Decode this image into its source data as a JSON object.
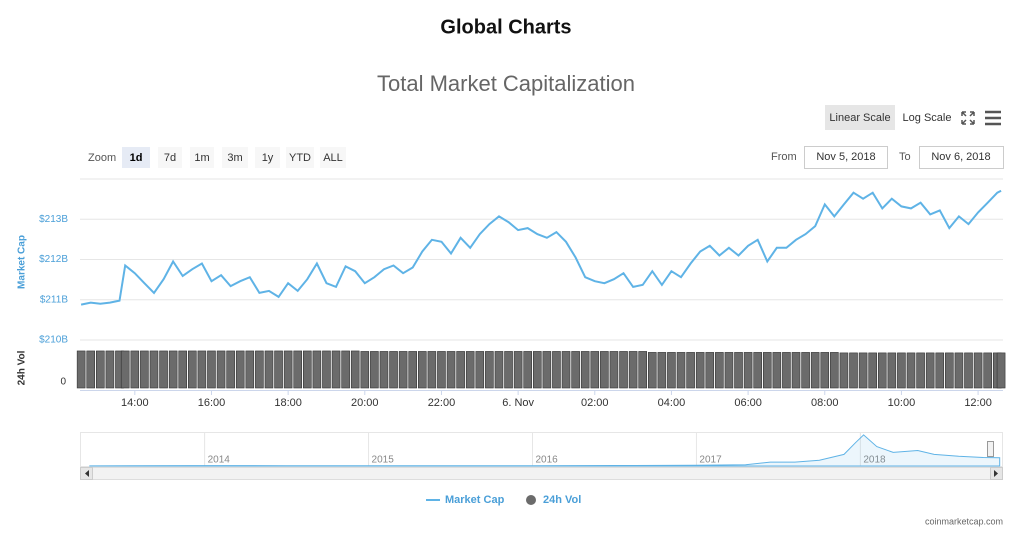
{
  "header": {
    "title": "Global Charts"
  },
  "controls": {
    "linear": "Linear Scale",
    "log": "Log Scale",
    "zoom_label": "Zoom",
    "zoom": [
      "1d",
      "7d",
      "1m",
      "3m",
      "1y",
      "YTD",
      "ALL"
    ],
    "from_label": "From",
    "from": "Nov 5, 2018",
    "to_label": "To",
    "to": "Nov 6, 2018"
  },
  "credit": "coinmarketcap.com",
  "chart_data": {
    "type": "line",
    "title": "Total Market Capitalization",
    "ylabel": "Market Cap",
    "y2label": "24h Vol",
    "x": [
      12.6,
      12.85,
      13.1,
      13.35,
      13.6,
      13.75,
      14,
      14.25,
      14.5,
      14.75,
      15,
      15.25,
      15.5,
      15.75,
      16,
      16.25,
      16.5,
      16.75,
      17,
      17.25,
      17.5,
      17.75,
      18,
      18.25,
      18.5,
      18.75,
      19,
      19.25,
      19.5,
      19.75,
      20,
      20.25,
      20.5,
      20.75,
      21,
      21.25,
      21.5,
      21.75,
      22,
      22.25,
      22.5,
      22.75,
      23,
      23.25,
      23.5,
      23.75,
      24,
      24.25,
      24.5,
      24.75,
      25,
      25.25,
      25.5,
      25.75,
      26,
      26.25,
      26.5,
      26.75,
      27,
      27.25,
      27.5,
      27.75,
      28,
      28.25,
      28.5,
      28.75,
      29,
      29.25,
      29.5,
      29.75,
      30,
      30.25,
      30.5,
      30.75,
      31,
      31.25,
      31.5,
      31.75,
      32,
      32.25,
      32.5,
      32.75,
      33,
      33.25,
      33.5,
      33.75,
      34,
      34.25,
      34.5,
      34.75,
      35,
      35.25,
      35.5,
      35.75,
      36,
      36.25,
      36.5,
      36.6
    ],
    "series": [
      {
        "name": "Market Cap",
        "color": "#5fb3e6",
        "values": [
          210.88,
          210.93,
          210.9,
          210.93,
          210.98,
          211.85,
          211.66,
          211.41,
          211.17,
          211.51,
          211.95,
          211.59,
          211.76,
          211.9,
          211.46,
          211.61,
          211.34,
          211.46,
          211.56,
          211.17,
          211.22,
          211.07,
          211.41,
          211.22,
          211.51,
          211.9,
          211.41,
          211.32,
          211.83,
          211.71,
          211.41,
          211.56,
          211.76,
          211.85,
          211.66,
          211.8,
          212.2,
          212.49,
          212.44,
          212.15,
          212.54,
          212.29,
          212.63,
          212.88,
          213.07,
          212.93,
          212.73,
          212.78,
          212.63,
          212.54,
          212.68,
          212.44,
          212.05,
          211.56,
          211.46,
          211.41,
          211.51,
          211.66,
          211.32,
          211.37,
          211.71,
          211.37,
          211.71,
          211.56,
          211.9,
          212.2,
          212.34,
          212.1,
          212.29,
          212.1,
          212.34,
          212.49,
          211.95,
          212.29,
          212.29,
          212.49,
          212.63,
          212.83,
          213.37,
          213.07,
          213.37,
          213.66,
          213.51,
          213.66,
          213.27,
          213.51,
          213.32,
          213.27,
          213.41,
          213.12,
          213.22,
          212.78,
          213.07,
          212.88,
          213.17,
          213.41,
          213.66,
          213.71
        ]
      },
      {
        "name": "24h Vol",
        "color": "#6b6b6b",
        "axis": "y2",
        "values": [
          15.2,
          15.2,
          15.2,
          15.2,
          15.2,
          15.2,
          15.2,
          15.2,
          15.2,
          15.2,
          15.2,
          15.2,
          15.2,
          15.2,
          15.2,
          15.2,
          15.2,
          15.2,
          15.2,
          15.2,
          15.2,
          15.2,
          15.2,
          15.2,
          15.2,
          15.2,
          15.2,
          15.2,
          15.2,
          15.2,
          15.0,
          15.0,
          15.0,
          15.0,
          15.0,
          15.0,
          15.0,
          15.0,
          15.0,
          15.0,
          15.0,
          15.0,
          15.0,
          15.0,
          15.0,
          15.0,
          15.0,
          15.0,
          15.0,
          15.0,
          15.0,
          15.0,
          15.0,
          15.0,
          15.0,
          15.0,
          15.0,
          15.0,
          15.0,
          15.0,
          14.6,
          14.6,
          14.6,
          14.6,
          14.6,
          14.6,
          14.6,
          14.6,
          14.6,
          14.6,
          14.6,
          14.6,
          14.6,
          14.6,
          14.6,
          14.6,
          14.6,
          14.6,
          14.6,
          14.6,
          14.4,
          14.4,
          14.4,
          14.4,
          14.4,
          14.4,
          14.4,
          14.4,
          14.4,
          14.4,
          14.4,
          14.4,
          14.4,
          14.4,
          14.4,
          14.4,
          14.4,
          14.4
        ]
      }
    ],
    "xlim": [
      12.57,
      36.65
    ],
    "xticks": [
      {
        "value": 14,
        "label": "14:00"
      },
      {
        "value": 16,
        "label": "16:00"
      },
      {
        "value": 18,
        "label": "18:00"
      },
      {
        "value": 20,
        "label": "20:00"
      },
      {
        "value": 22,
        "label": "22:00"
      },
      {
        "value": 24,
        "label": "6. Nov"
      },
      {
        "value": 26,
        "label": "02:00"
      },
      {
        "value": 28,
        "label": "04:00"
      },
      {
        "value": 30,
        "label": "06:00"
      },
      {
        "value": 32,
        "label": "08:00"
      },
      {
        "value": 34,
        "label": "10:00"
      },
      {
        "value": 36,
        "label": "12:00"
      }
    ],
    "ylim": [
      210,
      214
    ],
    "yticks": [
      {
        "value": 210,
        "label": "$210B"
      },
      {
        "value": 211,
        "label": "$211B"
      },
      {
        "value": 212,
        "label": "$212B"
      },
      {
        "value": 213,
        "label": "$213B"
      }
    ],
    "y2lim": [
      0,
      16
    ],
    "y2ticks": [
      0
    ],
    "grid": true,
    "navigator": {
      "x": [
        2013.3,
        2013.9,
        2014.5,
        2015,
        2015.5,
        2016,
        2016.5,
        2017,
        2017.3,
        2017.45,
        2017.6,
        2017.75,
        2017.9,
        2017.97,
        2018.02,
        2018.1,
        2018.2,
        2018.35,
        2018.45,
        2018.6,
        2018.75,
        2018.85
      ],
      "values": [
        2,
        10,
        8,
        4,
        4,
        7,
        12,
        18,
        30,
        100,
        100,
        150,
        300,
        600,
        800,
        500,
        350,
        400,
        300,
        250,
        220,
        210
      ],
      "xlim": [
        2013.24,
        2018.87
      ],
      "ylim": [
        0,
        850
      ],
      "xticks": [
        2014,
        2015,
        2016,
        2017,
        2018
      ]
    }
  }
}
